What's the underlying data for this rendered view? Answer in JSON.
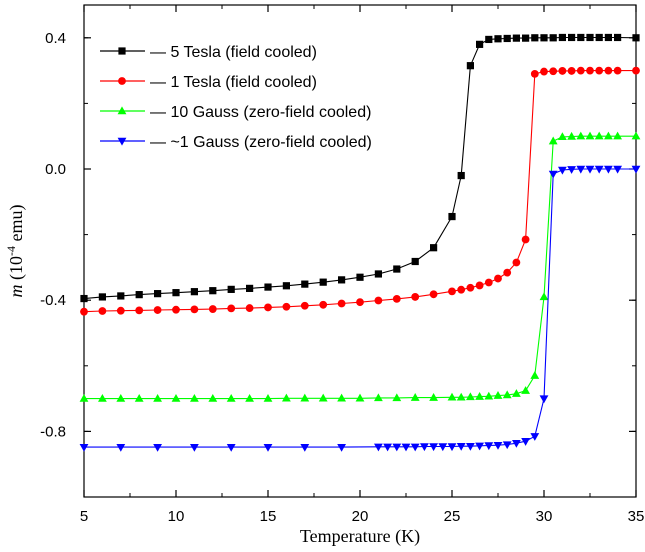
{
  "chart_data": {
    "type": "line",
    "xlabel": "Temperature (K)",
    "ylabel_main": "m",
    "ylabel_rest": " (10",
    "ylabel_exp": "-4",
    "ylabel_unit": " emu)",
    "xlim": [
      5,
      35
    ],
    "ylim": [
      -1.0,
      0.5
    ],
    "xticks": [
      5,
      10,
      15,
      20,
      25,
      30,
      35
    ],
    "xtick_labels": [
      "5",
      "10",
      "15",
      "20",
      "25",
      "30",
      "35"
    ],
    "yticks": [
      -0.8,
      -0.4,
      0.0,
      0.4
    ],
    "ytick_labels": [
      "-0.8",
      "-0.4",
      "0.0",
      "0.4"
    ],
    "legend_position": "top-left",
    "series": [
      {
        "name": "5 Tesla (field cooled)",
        "color": "#000000",
        "marker": "square",
        "points": [
          [
            5,
            -0.395
          ],
          [
            6,
            -0.39
          ],
          [
            7,
            -0.387
          ],
          [
            8,
            -0.383
          ],
          [
            9,
            -0.38
          ],
          [
            10,
            -0.377
          ],
          [
            11,
            -0.374
          ],
          [
            12,
            -0.371
          ],
          [
            13,
            -0.367
          ],
          [
            14,
            -0.364
          ],
          [
            15,
            -0.36
          ],
          [
            16,
            -0.356
          ],
          [
            17,
            -0.351
          ],
          [
            18,
            -0.345
          ],
          [
            19,
            -0.338
          ],
          [
            20,
            -0.33
          ],
          [
            21,
            -0.32
          ],
          [
            22,
            -0.305
          ],
          [
            23,
            -0.282
          ],
          [
            24,
            -0.24
          ],
          [
            25,
            -0.145
          ],
          [
            25.5,
            -0.02
          ],
          [
            26,
            0.315
          ],
          [
            26.5,
            0.38
          ],
          [
            27,
            0.395
          ],
          [
            27.5,
            0.397
          ],
          [
            28,
            0.398
          ],
          [
            28.5,
            0.399
          ],
          [
            29,
            0.399
          ],
          [
            29.5,
            0.4
          ],
          [
            30,
            0.4
          ],
          [
            30.5,
            0.4
          ],
          [
            31,
            0.401
          ],
          [
            31.5,
            0.401
          ],
          [
            32,
            0.401
          ],
          [
            32.5,
            0.401
          ],
          [
            33,
            0.401
          ],
          [
            33.5,
            0.401
          ],
          [
            34,
            0.401
          ],
          [
            35,
            0.4
          ]
        ]
      },
      {
        "name": "1 Tesla (field cooled)",
        "color": "#ff0000",
        "marker": "circle",
        "points": [
          [
            5,
            -0.435
          ],
          [
            6,
            -0.433
          ],
          [
            7,
            -0.432
          ],
          [
            8,
            -0.431
          ],
          [
            9,
            -0.43
          ],
          [
            10,
            -0.429
          ],
          [
            11,
            -0.428
          ],
          [
            12,
            -0.427
          ],
          [
            13,
            -0.425
          ],
          [
            14,
            -0.424
          ],
          [
            15,
            -0.422
          ],
          [
            16,
            -0.42
          ],
          [
            17,
            -0.417
          ],
          [
            18,
            -0.414
          ],
          [
            19,
            -0.41
          ],
          [
            20,
            -0.406
          ],
          [
            21,
            -0.401
          ],
          [
            22,
            -0.396
          ],
          [
            23,
            -0.39
          ],
          [
            24,
            -0.382
          ],
          [
            25,
            -0.373
          ],
          [
            25.5,
            -0.368
          ],
          [
            26,
            -0.362
          ],
          [
            26.5,
            -0.355
          ],
          [
            27,
            -0.346
          ],
          [
            27.5,
            -0.334
          ],
          [
            28,
            -0.316
          ],
          [
            28.5,
            -0.285
          ],
          [
            29,
            -0.215
          ],
          [
            29.5,
            0.29
          ],
          [
            30,
            0.297
          ],
          [
            30.5,
            0.298
          ],
          [
            31,
            0.299
          ],
          [
            31.5,
            0.299
          ],
          [
            32,
            0.3
          ],
          [
            32.5,
            0.3
          ],
          [
            33,
            0.3
          ],
          [
            33.5,
            0.3
          ],
          [
            34,
            0.3
          ],
          [
            35,
            0.3
          ]
        ]
      },
      {
        "name": "10 Gauss (zero-field cooled)",
        "color": "#00ff00",
        "marker": "triangle-up",
        "points": [
          [
            5,
            -0.7
          ],
          [
            6,
            -0.7
          ],
          [
            7,
            -0.7
          ],
          [
            8,
            -0.7
          ],
          [
            9,
            -0.7
          ],
          [
            10,
            -0.7
          ],
          [
            11,
            -0.7
          ],
          [
            12,
            -0.7
          ],
          [
            13,
            -0.7
          ],
          [
            14,
            -0.7
          ],
          [
            15,
            -0.7
          ],
          [
            16,
            -0.699
          ],
          [
            17,
            -0.699
          ],
          [
            18,
            -0.699
          ],
          [
            19,
            -0.699
          ],
          [
            20,
            -0.699
          ],
          [
            21,
            -0.698
          ],
          [
            22,
            -0.698
          ],
          [
            23,
            -0.697
          ],
          [
            24,
            -0.697
          ],
          [
            25,
            -0.696
          ],
          [
            25.5,
            -0.696
          ],
          [
            26,
            -0.695
          ],
          [
            26.5,
            -0.694
          ],
          [
            27,
            -0.693
          ],
          [
            27.5,
            -0.691
          ],
          [
            28,
            -0.689
          ],
          [
            28.5,
            -0.685
          ],
          [
            29,
            -0.676
          ],
          [
            29.5,
            -0.63
          ],
          [
            30,
            -0.39
          ],
          [
            30.5,
            0.085
          ],
          [
            31,
            0.098
          ],
          [
            31.5,
            0.099
          ],
          [
            32,
            0.1
          ],
          [
            32.5,
            0.1
          ],
          [
            33,
            0.1
          ],
          [
            33.5,
            0.1
          ],
          [
            34,
            0.1
          ],
          [
            35,
            0.1
          ]
        ]
      },
      {
        "name": "~1 Gauss (zero-field cooled)",
        "color": "#0000ff",
        "marker": "triangle-down",
        "points": [
          [
            5,
            -0.848
          ],
          [
            7,
            -0.848
          ],
          [
            9,
            -0.848
          ],
          [
            11,
            -0.848
          ],
          [
            13,
            -0.848
          ],
          [
            15,
            -0.848
          ],
          [
            17,
            -0.848
          ],
          [
            19,
            -0.848
          ],
          [
            21,
            -0.847
          ],
          [
            21.5,
            -0.847
          ],
          [
            22,
            -0.847
          ],
          [
            22.5,
            -0.847
          ],
          [
            23,
            -0.847
          ],
          [
            23.5,
            -0.846
          ],
          [
            24,
            -0.846
          ],
          [
            24.5,
            -0.846
          ],
          [
            25,
            -0.846
          ],
          [
            25.5,
            -0.845
          ],
          [
            26,
            -0.845
          ],
          [
            26.5,
            -0.844
          ],
          [
            27,
            -0.843
          ],
          [
            27.5,
            -0.842
          ],
          [
            28,
            -0.84
          ],
          [
            28.5,
            -0.836
          ],
          [
            29,
            -0.83
          ],
          [
            29.5,
            -0.815
          ],
          [
            30,
            -0.7
          ],
          [
            30.5,
            -0.015
          ],
          [
            31,
            -0.003
          ],
          [
            31.5,
            -0.001
          ],
          [
            32,
            0.0
          ],
          [
            32.5,
            0.0
          ],
          [
            33,
            0.0
          ],
          [
            33.5,
            0.0
          ],
          [
            34,
            0.0
          ],
          [
            35,
            0.0
          ]
        ]
      }
    ]
  }
}
